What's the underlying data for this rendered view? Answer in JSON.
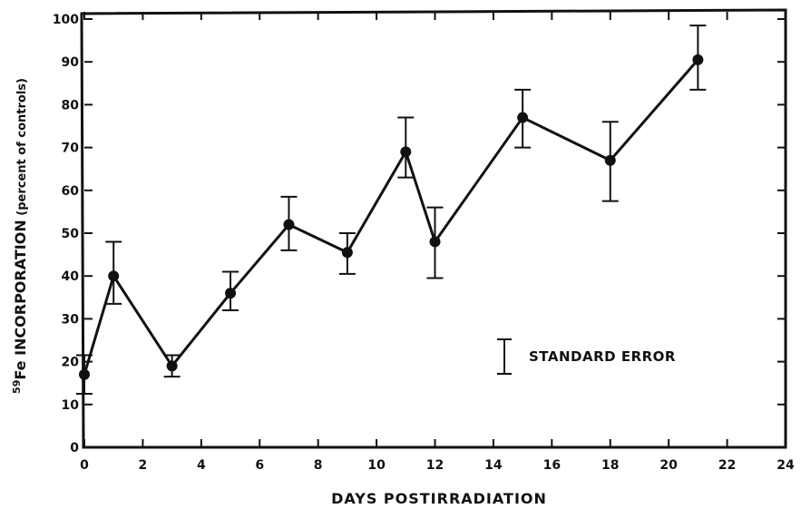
{
  "chart_data": {
    "type": "line",
    "xlabel": "DAYS POSTIRRADIATION",
    "ylabel": {
      "superscript": "59",
      "element": "Fe",
      "main": " INCORPORATION",
      "sub": " (percent of controls)"
    },
    "xlim": [
      0,
      24
    ],
    "ylim": [
      0,
      100
    ],
    "x_ticks": [
      0,
      2,
      4,
      6,
      8,
      10,
      12,
      14,
      16,
      18,
      20,
      22,
      24
    ],
    "y_ticks": [
      0,
      10,
      20,
      30,
      40,
      50,
      60,
      70,
      80,
      90,
      100
    ],
    "grid": false,
    "legend": {
      "label": "STANDARD ERROR",
      "position": "right-lower"
    },
    "series": [
      {
        "x": [
          0,
          1,
          3,
          5,
          7,
          9,
          11,
          12,
          15,
          18,
          21
        ],
        "y": [
          17,
          40,
          19,
          36,
          52,
          45.5,
          69,
          48,
          77,
          67,
          90.5
        ],
        "error_low": [
          12.5,
          33.5,
          16.5,
          32,
          46,
          40.5,
          63,
          39.5,
          70,
          57.5,
          83.5
        ],
        "error_high": [
          21.5,
          48,
          21.5,
          41,
          58.5,
          50,
          77,
          56,
          83.5,
          76,
          98.5
        ]
      }
    ]
  }
}
